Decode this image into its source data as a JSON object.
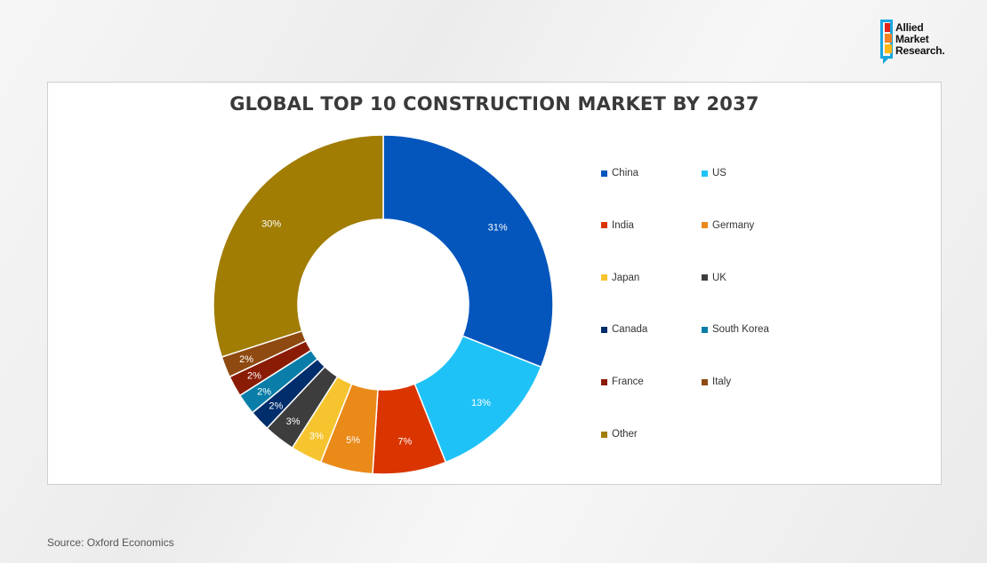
{
  "logo": {
    "lines": [
      "Allied",
      "Market",
      "Research."
    ],
    "colors": [
      "#e2231a",
      "#f58220",
      "#fdb913"
    ]
  },
  "chart_data": {
    "type": "pie",
    "donut": true,
    "title": "GLOBAL TOP 10 CONSTRUCTION MARKET BY 2037",
    "legend_position": "right",
    "slices": [
      {
        "name": "China",
        "value": 31,
        "label": "31%",
        "color": "#0456bd"
      },
      {
        "name": "US",
        "value": 13,
        "label": "13%",
        "color": "#1fc2f7"
      },
      {
        "name": "India",
        "value": 7,
        "label": "7%",
        "color": "#da3500"
      },
      {
        "name": "Germany",
        "value": 5,
        "label": "5%",
        "color": "#ea8a19"
      },
      {
        "name": "Japan",
        "value": 3,
        "label": "3%",
        "color": "#f6c42f"
      },
      {
        "name": "UK",
        "value": 3,
        "label": "3%",
        "color": "#3d3d3d"
      },
      {
        "name": "Canada",
        "value": 2,
        "label": "2%",
        "color": "#002d6c"
      },
      {
        "name": "South Korea",
        "value": 2,
        "label": "2%",
        "color": "#0a7ea8"
      },
      {
        "name": "France",
        "value": 2,
        "label": "2%",
        "color": "#8a1c06"
      },
      {
        "name": "Italy",
        "value": 2,
        "label": "2%",
        "color": "#8e4a11"
      },
      {
        "name": "Other",
        "value": 30,
        "label": "30%",
        "color": "#a17d04"
      }
    ]
  },
  "source": "Source: Oxford Economics"
}
